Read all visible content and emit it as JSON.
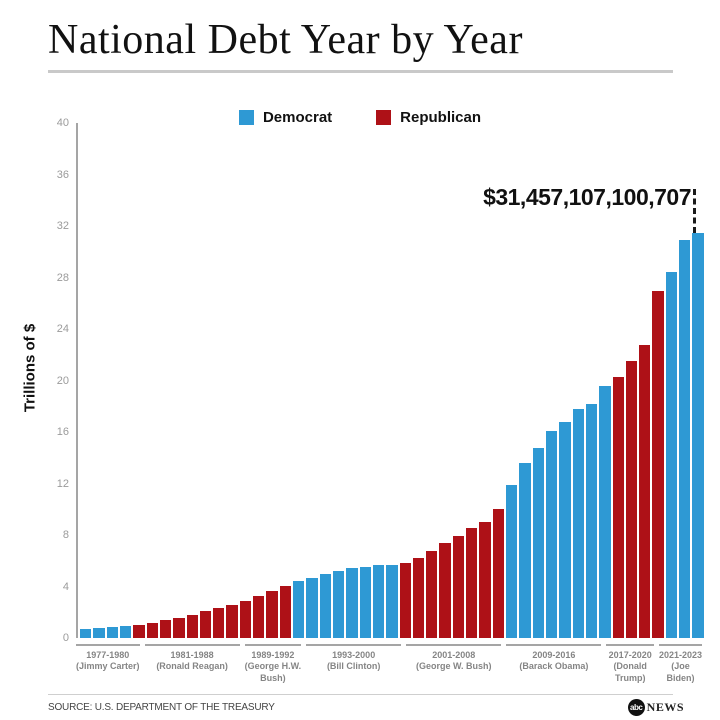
{
  "title": "National Debt Year by Year",
  "y_axis": {
    "label": "Trillions of $"
  },
  "annotation": {
    "label": "$31,457,107,100,707"
  },
  "footer": {
    "source": "SOURCE: U.S. DEPARTMENT OF THE TREASURY",
    "logo_abc": "abc",
    "logo_news": "NEWS"
  },
  "chart_data": {
    "type": "bar",
    "title": "National Debt Year by Year",
    "ylabel": "Trillions of $",
    "ylim": [
      0,
      40
    ],
    "yticks": [
      0,
      4,
      8,
      12,
      16,
      20,
      24,
      28,
      32,
      36,
      40
    ],
    "grid": false,
    "legend_position": "top-center",
    "annotation_label": "$31,457,107,100,707",
    "annotation_value": 31.457,
    "legend": [
      {
        "label": "Democrat",
        "color": "#2E99D4"
      },
      {
        "label": "Republican",
        "color": "#AE1117"
      }
    ],
    "party_colors": {
      "Democrat": "#2E99D4",
      "Republican": "#AE1117"
    },
    "groups": [
      {
        "years": "1977-1980",
        "president_lines": [
          "(Jimmy Carter)"
        ],
        "party": "Democrat",
        "x": [
          1977,
          1978,
          1979,
          1980
        ],
        "values": [
          0.7,
          0.77,
          0.83,
          0.91
        ]
      },
      {
        "years": "1981-1988",
        "president_lines": [
          "(Ronald Reagan)"
        ],
        "party": "Republican",
        "x": [
          1981,
          1982,
          1983,
          1984,
          1985,
          1986,
          1987,
          1988
        ],
        "values": [
          1.0,
          1.14,
          1.38,
          1.57,
          1.82,
          2.13,
          2.35,
          2.6
        ]
      },
      {
        "years": "1989-1992",
        "president_lines": [
          "(George H.W.",
          "Bush)"
        ],
        "party": "Republican",
        "x": [
          1989,
          1990,
          1991,
          1992
        ],
        "values": [
          2.86,
          3.23,
          3.67,
          4.06
        ]
      },
      {
        "years": "1993-2000",
        "president_lines": [
          "(Bill Clinton)"
        ],
        "party": "Democrat",
        "x": [
          1993,
          1994,
          1995,
          1996,
          1997,
          1998,
          1999,
          2000
        ],
        "values": [
          4.41,
          4.69,
          4.97,
          5.22,
          5.41,
          5.53,
          5.66,
          5.67
        ]
      },
      {
        "years": "2001-2008",
        "president_lines": [
          "(George W. Bush)"
        ],
        "party": "Republican",
        "x": [
          2001,
          2002,
          2003,
          2004,
          2005,
          2006,
          2007,
          2008
        ],
        "values": [
          5.81,
          6.23,
          6.78,
          7.38,
          7.93,
          8.51,
          9.01,
          10.02
        ]
      },
      {
        "years": "2009-2016",
        "president_lines": [
          "(Barack Obama)"
        ],
        "party": "Democrat",
        "x": [
          2009,
          2010,
          2011,
          2012,
          2013,
          2014,
          2015,
          2016
        ],
        "values": [
          11.91,
          13.56,
          14.79,
          16.07,
          16.74,
          17.82,
          18.15,
          19.57
        ]
      },
      {
        "years": "2017-2020",
        "president_lines": [
          "(Donald",
          "Trump)"
        ],
        "party": "Republican",
        "x": [
          2017,
          2018,
          2019,
          2020
        ],
        "values": [
          20.24,
          21.52,
          22.72,
          26.95
        ]
      },
      {
        "years": "2021-2023",
        "president_lines": [
          "(Joe",
          "Biden)"
        ],
        "party": "Democrat",
        "x": [
          2021,
          2022,
          2023
        ],
        "values": [
          28.43,
          30.93,
          31.46
        ]
      }
    ],
    "source": "SOURCE: U.S. DEPARTMENT OF THE TREASURY"
  }
}
